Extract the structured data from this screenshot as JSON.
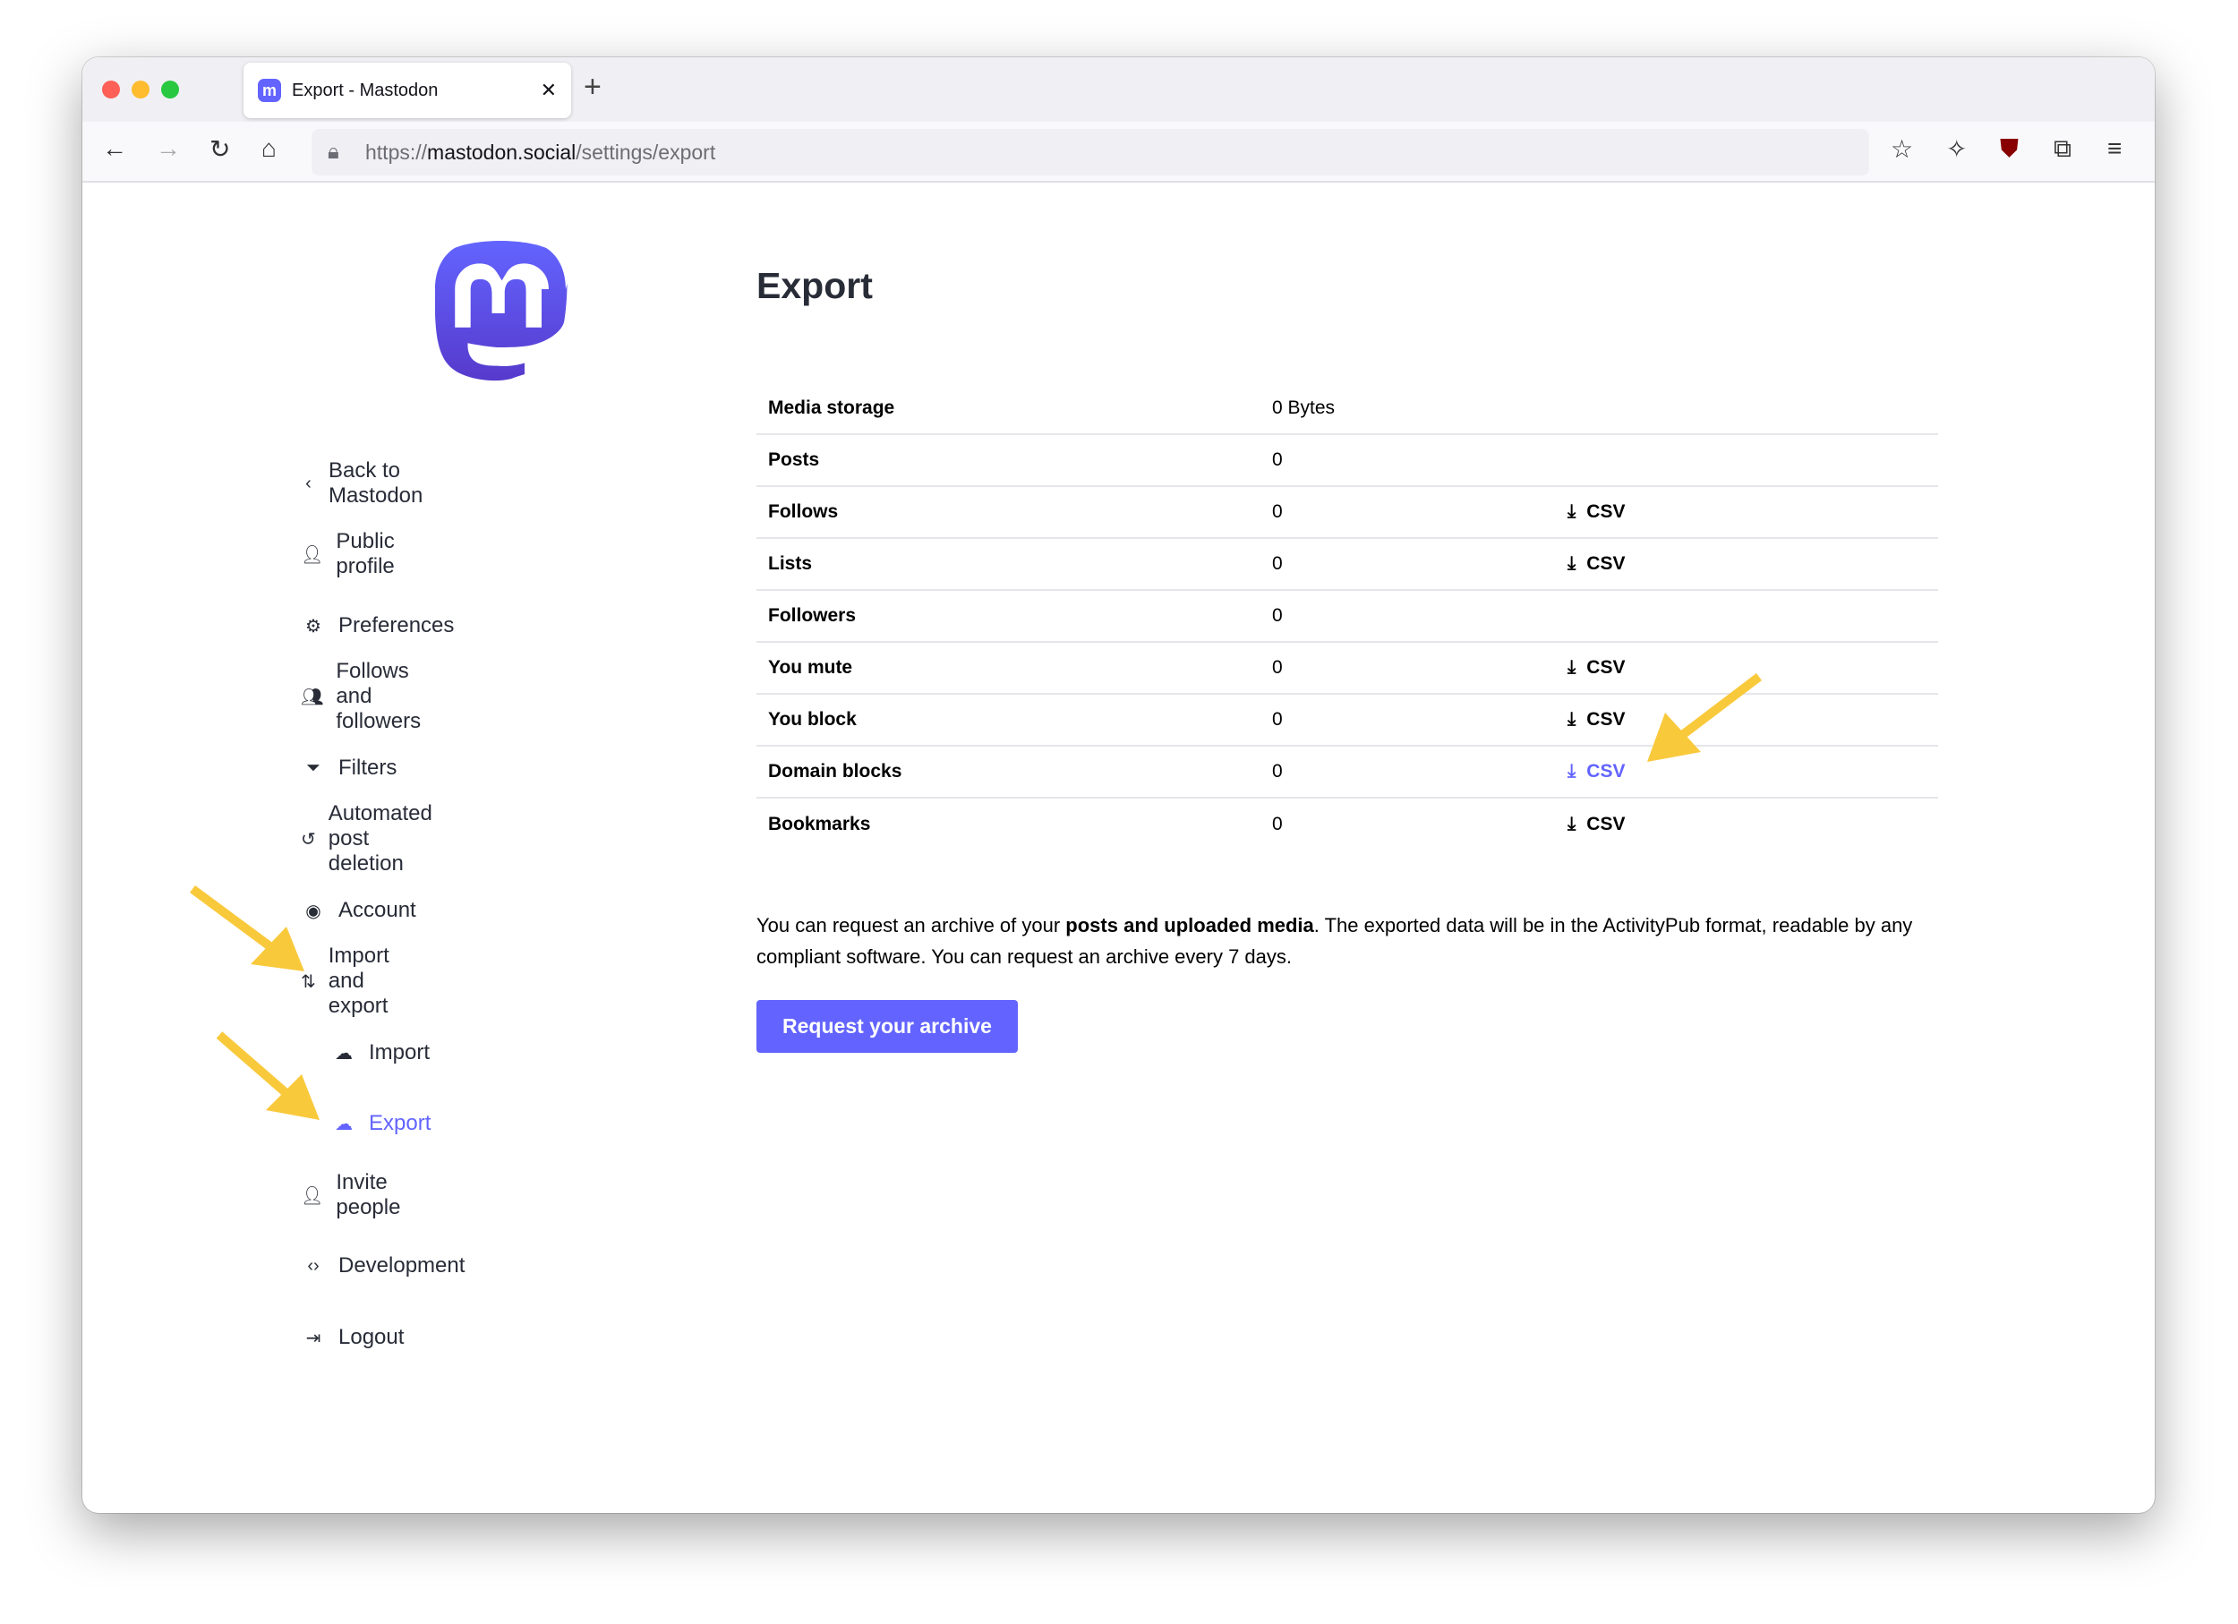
{
  "browser": {
    "tab_title": "Export - Mastodon",
    "url_scheme": "https://",
    "url_host": "mastodon.social",
    "url_path": "/settings/export"
  },
  "sidebar": {
    "items": [
      {
        "label": "Back to Mastodon",
        "icon": "chevron-left-icon"
      },
      {
        "label": "Public profile",
        "icon": "user-icon"
      },
      {
        "label": "Preferences",
        "icon": "gear-icon"
      },
      {
        "label": "Follows and followers",
        "icon": "users-icon"
      },
      {
        "label": "Filters",
        "icon": "filter-icon"
      },
      {
        "label": "Automated post deletion",
        "icon": "history-icon"
      },
      {
        "label": "Account",
        "icon": "user-circle-icon"
      },
      {
        "label": "Import and export",
        "icon": "import-export-icon"
      },
      {
        "label": "Import",
        "icon": "cloud-upload-icon"
      },
      {
        "label": "Export",
        "icon": "cloud-download-icon",
        "active": true
      },
      {
        "label": "Invite people",
        "icon": "user-plus-icon"
      },
      {
        "label": "Development",
        "icon": "code-icon"
      },
      {
        "label": "Logout",
        "icon": "logout-icon"
      }
    ]
  },
  "main": {
    "title": "Export",
    "rows": [
      {
        "label": "Media storage",
        "value": "0 Bytes",
        "action": ""
      },
      {
        "label": "Posts",
        "value": "0",
        "action": ""
      },
      {
        "label": "Follows",
        "value": "0",
        "action": "CSV"
      },
      {
        "label": "Lists",
        "value": "0",
        "action": "CSV"
      },
      {
        "label": "Followers",
        "value": "0",
        "action": ""
      },
      {
        "label": "You mute",
        "value": "0",
        "action": "CSV"
      },
      {
        "label": "You block",
        "value": "0",
        "action": "CSV"
      },
      {
        "label": "Domain blocks",
        "value": "0",
        "action": "CSV",
        "highlight": true
      },
      {
        "label": "Bookmarks",
        "value": "0",
        "action": "CSV"
      }
    ],
    "info_pre": "You can request an archive of your ",
    "info_bold": "posts and uploaded media",
    "info_post": ". The exported data will be in the ActivityPub format, readable by any compliant software. You can request an archive every 7 days.",
    "button": "Request your archive"
  },
  "colors": {
    "accent": "#6364ff",
    "annotation": "#f9c93c"
  }
}
